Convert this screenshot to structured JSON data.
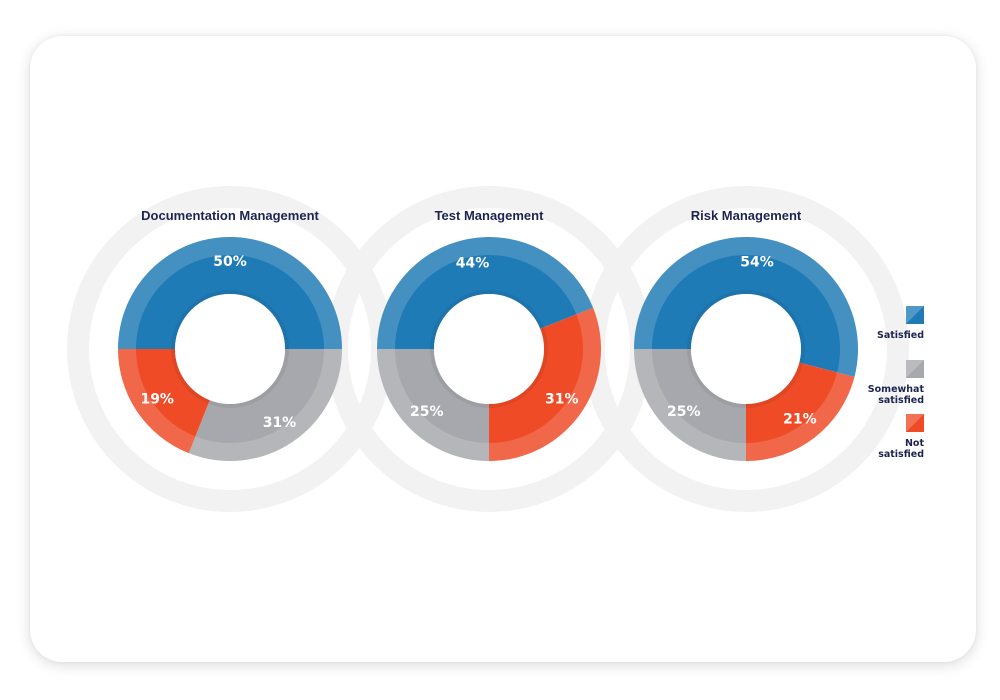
{
  "chart_data": [
    {
      "type": "pie",
      "title": "Documentation Management",
      "categories": [
        "Satisfied",
        "Somewhat satisfied",
        "Not satisfied"
      ],
      "values": [
        50,
        31,
        19
      ],
      "labels": [
        "50%",
        "31%",
        "19%"
      ]
    },
    {
      "type": "pie",
      "title": "Test Management",
      "categories": [
        "Satisfied",
        "Not satisfied",
        "Somewhat satisfied"
      ],
      "values": [
        44,
        31,
        25
      ],
      "labels": [
        "44%",
        "31%",
        "25%"
      ]
    },
    {
      "type": "pie",
      "title": "Risk Management",
      "categories": [
        "Satisfied",
        "Not satisfied",
        "Somewhat satisfied"
      ],
      "values": [
        54,
        21,
        25
      ],
      "labels": [
        "54%",
        "21%",
        "25%"
      ]
    }
  ],
  "legend": {
    "placement": "right",
    "items": [
      {
        "label": "Satisfied",
        "color": "#1f7bb6"
      },
      {
        "label": "Somewhat\nsatisfied",
        "color": "#a7a8ad"
      },
      {
        "label": "Not\nsatisfied",
        "color": "#ef4b27"
      }
    ]
  },
  "colors": {
    "Satisfied": "#1f7bb6",
    "Somewhat satisfied": "#a7a8ad",
    "Not satisfied": "#ef4b27",
    "title": "#1d2450"
  }
}
